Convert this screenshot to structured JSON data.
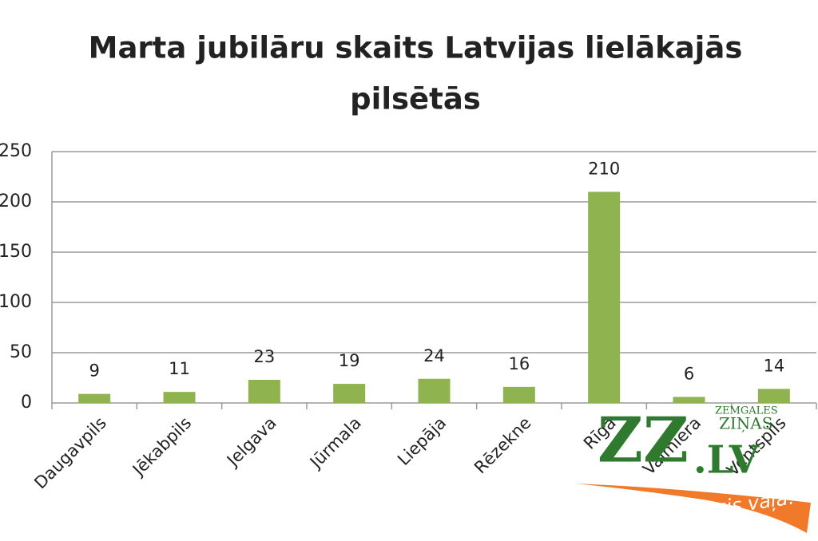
{
  "chart_data": {
    "type": "bar",
    "title": "Marta jubilāru skaits Latvijas lielākajās pilsētās",
    "categories": [
      "Daugavpils",
      "Jēkabpils",
      "Jelgava",
      "Jūrmala",
      "Liepāja",
      "Rēzekne",
      "Rīga",
      "Valmiera",
      "Ventspils"
    ],
    "values": [
      9,
      11,
      23,
      19,
      24,
      16,
      210,
      6,
      14
    ],
    "color": "#8fb34e",
    "ylim": [
      0,
      250
    ],
    "yticks": [
      0,
      50,
      100,
      150,
      200,
      250
    ],
    "grid": true
  },
  "logo": {
    "mark": "ZZ",
    "domain": ".LV",
    "brand_top": "ZEMGALES",
    "brand_bottom": "ZIŅAS",
    "slogan": "acis vaļā!"
  }
}
